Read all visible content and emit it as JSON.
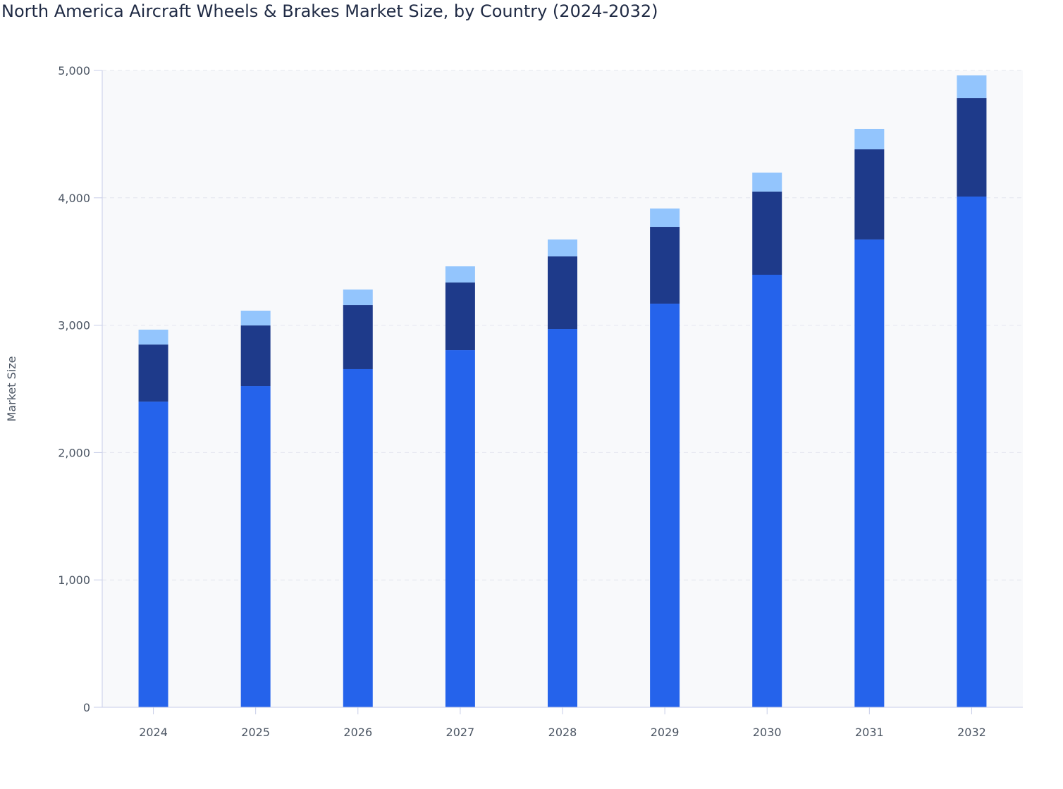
{
  "chart_data": {
    "type": "bar",
    "stacked": true,
    "title": "North America Aircraft Wheels & Brakes Market Size, by Country (2024-2032)",
    "xlabel": "",
    "ylabel": "Market Size",
    "ylim": [
      0,
      5000
    ],
    "yticks": [
      "0",
      "1,000",
      "2,000",
      "3,000",
      "4,000",
      "5,000"
    ],
    "ytick_values": [
      0,
      1000,
      2000,
      3000,
      4000,
      5000
    ],
    "grid": true,
    "categories": [
      "2024",
      "2025",
      "2026",
      "2027",
      "2028",
      "2029",
      "2030",
      "2031",
      "2032"
    ],
    "series": [
      {
        "color": "#2563eb",
        "values": [
          2400,
          2522,
          2655,
          2804,
          2970,
          3169,
          3396,
          3673,
          4010
        ]
      },
      {
        "color": "#1e3a8a",
        "values": [
          448,
          476,
          503,
          531,
          570,
          603,
          653,
          708,
          774
        ]
      },
      {
        "color": "#93c5fd",
        "values": [
          117,
          116,
          122,
          127,
          133,
          144,
          149,
          160,
          177
        ]
      }
    ]
  }
}
